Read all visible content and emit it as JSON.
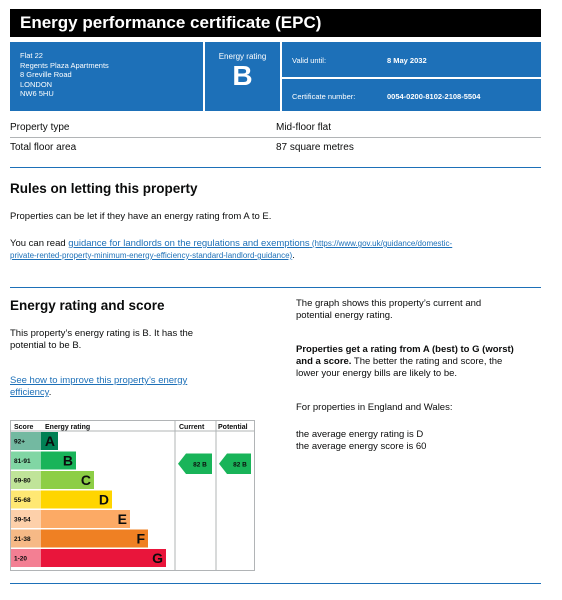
{
  "header": {
    "title": "Energy performance certificate (EPC)"
  },
  "address": [
    "Flat 22",
    "Regents Plaza Apartments",
    "8 Greville Road",
    "LONDON",
    "NW6 5HU"
  ],
  "energy_rating_box": {
    "label": "Energy rating",
    "value": "B"
  },
  "valid_until": {
    "label": "Valid until:",
    "value": "8 May 2032"
  },
  "certificate_number": {
    "label": "Certificate number:",
    "value": "0054-0200-8102-2108-5504"
  },
  "property": {
    "type_label": "Property type",
    "type_value": "Mid-floor flat",
    "area_label": "Total floor area",
    "area_value": "87 square metres"
  },
  "letting": {
    "heading": "Rules on letting this property",
    "p1": "Properties can be let if they have an energy rating from A to E.",
    "p2_prefix": "You can read ",
    "p2_link": "guidance for landlords on the regulations and exemptions",
    "p2_url_line1": " (https://www.gov.uk/guidance/domestic-",
    "p2_url_line2": "private-rented-property-minimum-energy-efficiency-standard-landlord-guidance)",
    "p2_suffix": "."
  },
  "rating_section": {
    "heading": "Energy rating and score",
    "p1_line1": "This property’s energy rating is B. It has the",
    "p1_line2": "potential to be B.",
    "link_line1": "See how to improve this property’s energy",
    "link_line2": "efficiency",
    "link_suffix": ".",
    "right_p1_line1": "The graph shows this property’s current and",
    "right_p1_line2": "potential energy rating.",
    "right_p2_bold_line1": "Properties get a rating from A (best) to G (worst)",
    "right_p2_bold_line2": "and a score.",
    "right_p2_rest_line2": " The better the rating and score, the",
    "right_p2_line3": "lower your energy bills are likely to be.",
    "right_p3": "For properties in England and Wales:",
    "right_p4_line1": "the average energy rating is D",
    "right_p4_line2": "the average energy score is 60"
  },
  "chart_data": {
    "type": "bar",
    "headers": {
      "score": "Score",
      "rating": "Energy rating",
      "current": "Current",
      "potential": "Potential"
    },
    "bands": [
      {
        "range": "92+",
        "letter": "A",
        "color": "#008054"
      },
      {
        "range": "81-91",
        "letter": "B",
        "color": "#19b459"
      },
      {
        "range": "69-80",
        "letter": "C",
        "color": "#8dce46"
      },
      {
        "range": "55-68",
        "letter": "D",
        "color": "#ffd500"
      },
      {
        "range": "39-54",
        "letter": "E",
        "color": "#fcaa65"
      },
      {
        "range": "21-38",
        "letter": "F",
        "color": "#ef8023"
      },
      {
        "range": "1-20",
        "letter": "G",
        "color": "#e9153b"
      }
    ],
    "current": {
      "score": 82,
      "letter": "B",
      "label": "82 B"
    },
    "potential": {
      "score": 82,
      "letter": "B",
      "label": "82 B"
    }
  }
}
